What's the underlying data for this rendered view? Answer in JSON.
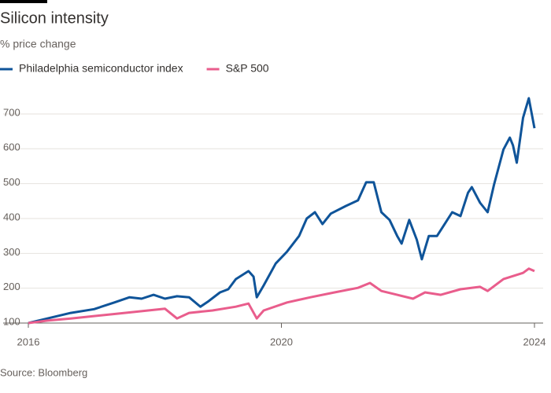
{
  "chart_data": {
    "type": "line",
    "title": "Silicon intensity",
    "subtitle": "% price change",
    "source": "Source: Bloomberg",
    "xlim": [
      2016,
      2024
    ],
    "xticks": [
      2016,
      2020,
      2024
    ],
    "ylim": [
      100,
      750
    ],
    "yticks": [
      100,
      200,
      300,
      400,
      500,
      600,
      700
    ],
    "grid": true,
    "series": [
      {
        "name": "Philadelphia semiconductor index",
        "color": "#0f5499",
        "x": [
          2016.0,
          2016.3,
          2016.67,
          2017.04,
          2017.36,
          2017.6,
          2017.79,
          2017.98,
          2018.16,
          2018.35,
          2018.54,
          2018.72,
          2018.85,
          2019.03,
          2019.16,
          2019.28,
          2019.48,
          2019.56,
          2019.61,
          2019.72,
          2019.91,
          2020.09,
          2020.28,
          2020.4,
          2020.53,
          2020.65,
          2020.78,
          2021.02,
          2021.21,
          2021.34,
          2021.46,
          2021.58,
          2021.71,
          2021.83,
          2021.9,
          2022.02,
          2022.14,
          2022.22,
          2022.33,
          2022.46,
          2022.58,
          2022.7,
          2022.83,
          2022.95,
          2023.01,
          2023.14,
          2023.26,
          2023.36,
          2023.51,
          2023.61,
          2023.66,
          2023.72,
          2023.82,
          2023.91,
          2024.0
        ],
        "values": [
          100,
          113,
          129,
          140,
          159,
          174,
          170,
          181,
          170,
          177,
          174,
          147,
          163,
          188,
          197,
          226,
          249,
          233,
          174,
          208,
          271,
          305,
          350,
          400,
          418,
          384,
          414,
          436,
          452,
          504,
          504,
          418,
          396,
          350,
          328,
          396,
          339,
          283,
          350,
          350,
          384,
          418,
          407,
          474,
          490,
          445,
          418,
          497,
          598,
          632,
          610,
          560,
          689,
          745,
          659
        ]
      },
      {
        "name": "S&P 500",
        "color": "#e95d8c",
        "x": [
          2016.0,
          2016.3,
          2016.67,
          2017.04,
          2017.42,
          2017.79,
          2018.16,
          2018.35,
          2018.54,
          2018.91,
          2019.28,
          2019.48,
          2019.61,
          2019.72,
          2020.09,
          2020.46,
          2020.84,
          2021.21,
          2021.4,
          2021.58,
          2021.83,
          2022.08,
          2022.27,
          2022.52,
          2022.83,
          2023.14,
          2023.26,
          2023.51,
          2023.82,
          2023.91,
          2024.0
        ],
        "values": [
          100,
          107,
          113,
          120,
          127,
          134,
          141,
          113,
          129,
          136,
          147,
          156,
          113,
          136,
          159,
          174,
          188,
          201,
          215,
          192,
          181,
          170,
          188,
          181,
          197,
          204,
          192,
          226,
          244,
          256,
          249
        ]
      }
    ]
  }
}
